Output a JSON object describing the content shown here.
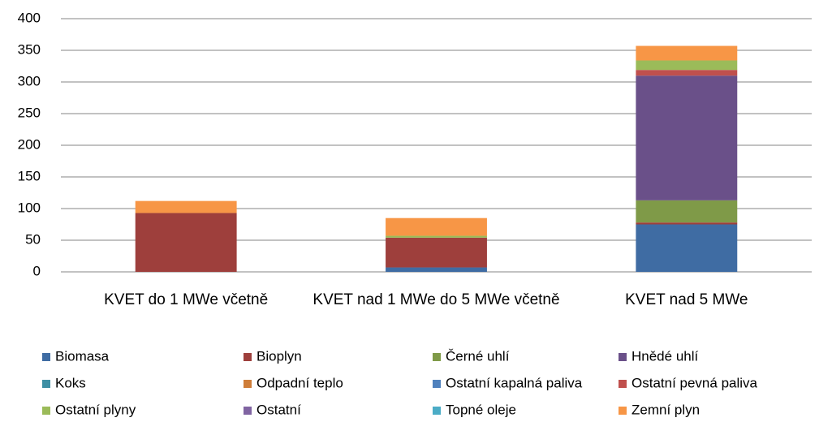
{
  "chart_data": {
    "type": "stacked_bar",
    "categories": [
      "KVET do 1 MWe včetně",
      "KVET nad 1 MWe do 5 MWe včetně",
      "KVET nad 5 MWe"
    ],
    "series": [
      {
        "name": "Biomasa",
        "color": "#3f6ca3",
        "values": [
          0,
          7,
          75
        ]
      },
      {
        "name": "Bioplyn",
        "color": "#9e3f3c",
        "values": [
          93,
          47,
          3
        ]
      },
      {
        "name": "Černé uhlí",
        "color": "#7f9a48",
        "values": [
          0,
          0,
          35
        ]
      },
      {
        "name": "Hnědé uhlí",
        "color": "#6a5089",
        "values": [
          0,
          0,
          197
        ]
      },
      {
        "name": "Koks",
        "color": "#3e8fa4",
        "values": [
          0,
          0,
          0
        ]
      },
      {
        "name": "Odpadní teplo",
        "color": "#ce7d39",
        "values": [
          0,
          0,
          0
        ]
      },
      {
        "name": "Ostatní kapalná paliva",
        "color": "#4f81bd",
        "values": [
          0,
          0,
          0
        ]
      },
      {
        "name": "Ostatní pevná paliva",
        "color": "#c0504d",
        "values": [
          0,
          0,
          9
        ]
      },
      {
        "name": "Ostatní plyny",
        "color": "#9bbb59",
        "values": [
          0,
          3,
          15
        ]
      },
      {
        "name": "Ostatní",
        "color": "#8064a2",
        "values": [
          0,
          0,
          0
        ]
      },
      {
        "name": "Topné oleje",
        "color": "#4bacc6",
        "values": [
          0,
          0,
          0
        ]
      },
      {
        "name": "Zemní plyn",
        "color": "#f79646",
        "values": [
          19,
          28,
          23
        ]
      }
    ],
    "ylim": [
      0,
      400
    ],
    "yticks": [
      0,
      50,
      100,
      150,
      200,
      250,
      300,
      350,
      400
    ],
    "grid": true,
    "legend": "bottom"
  }
}
